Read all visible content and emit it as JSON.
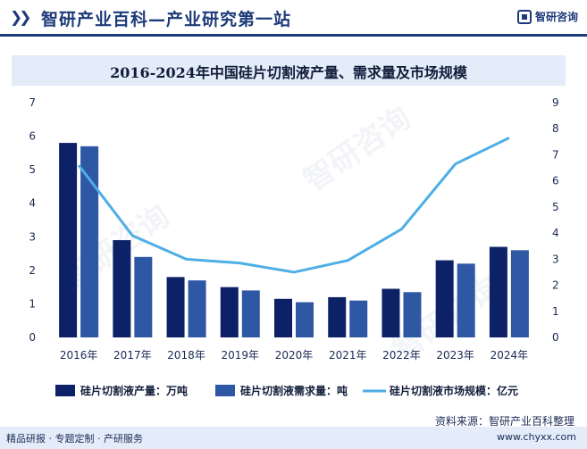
{
  "header": {
    "title": "智研产业百科—产业研究第一站",
    "brand": "智研咨询"
  },
  "chart_data": {
    "type": "bar",
    "title": "2016-2024年中国硅片切割液产量、需求量及市场规模",
    "categories": [
      "2016年",
      "2017年",
      "2018年",
      "2019年",
      "2020年",
      "2021年",
      "2022年",
      "2023年",
      "2024年"
    ],
    "series": [
      {
        "name": "硅片切割液产量：万吨",
        "kind": "bar",
        "axis": "left",
        "color": "#0d2266",
        "values": [
          5.8,
          2.9,
          1.8,
          1.5,
          1.15,
          1.2,
          1.45,
          2.3,
          2.7
        ]
      },
      {
        "name": "硅片切割液需求量：吨",
        "kind": "bar",
        "axis": "left",
        "color": "#2e57a4",
        "values": [
          5.7,
          2.4,
          1.7,
          1.4,
          1.05,
          1.1,
          1.35,
          2.2,
          2.6
        ]
      },
      {
        "name": "硅片切割液市场规模：亿元",
        "kind": "line",
        "axis": "right",
        "color": "#4eaee6",
        "values": [
          6.6,
          3.9,
          3.0,
          2.85,
          2.5,
          2.95,
          4.15,
          6.65,
          7.65
        ]
      }
    ],
    "left_axis": {
      "ticks": [
        "0",
        "1",
        "2",
        "3",
        "4",
        "5",
        "6",
        "7"
      ],
      "ylim": [
        0,
        7
      ]
    },
    "right_axis": {
      "ticks": [
        "0",
        "1",
        "2",
        "3",
        "4",
        "5",
        "6",
        "7",
        "8",
        "9"
      ],
      "ylim": [
        0,
        9
      ]
    },
    "legend_position": "bottom",
    "grid": false
  },
  "footer": {
    "source": "资料来源：智研产业百科整理",
    "left": "精品研报 · 专题定制 · 产研服务",
    "right": "www.chyxx.com"
  },
  "watermark_text": "智研咨询"
}
